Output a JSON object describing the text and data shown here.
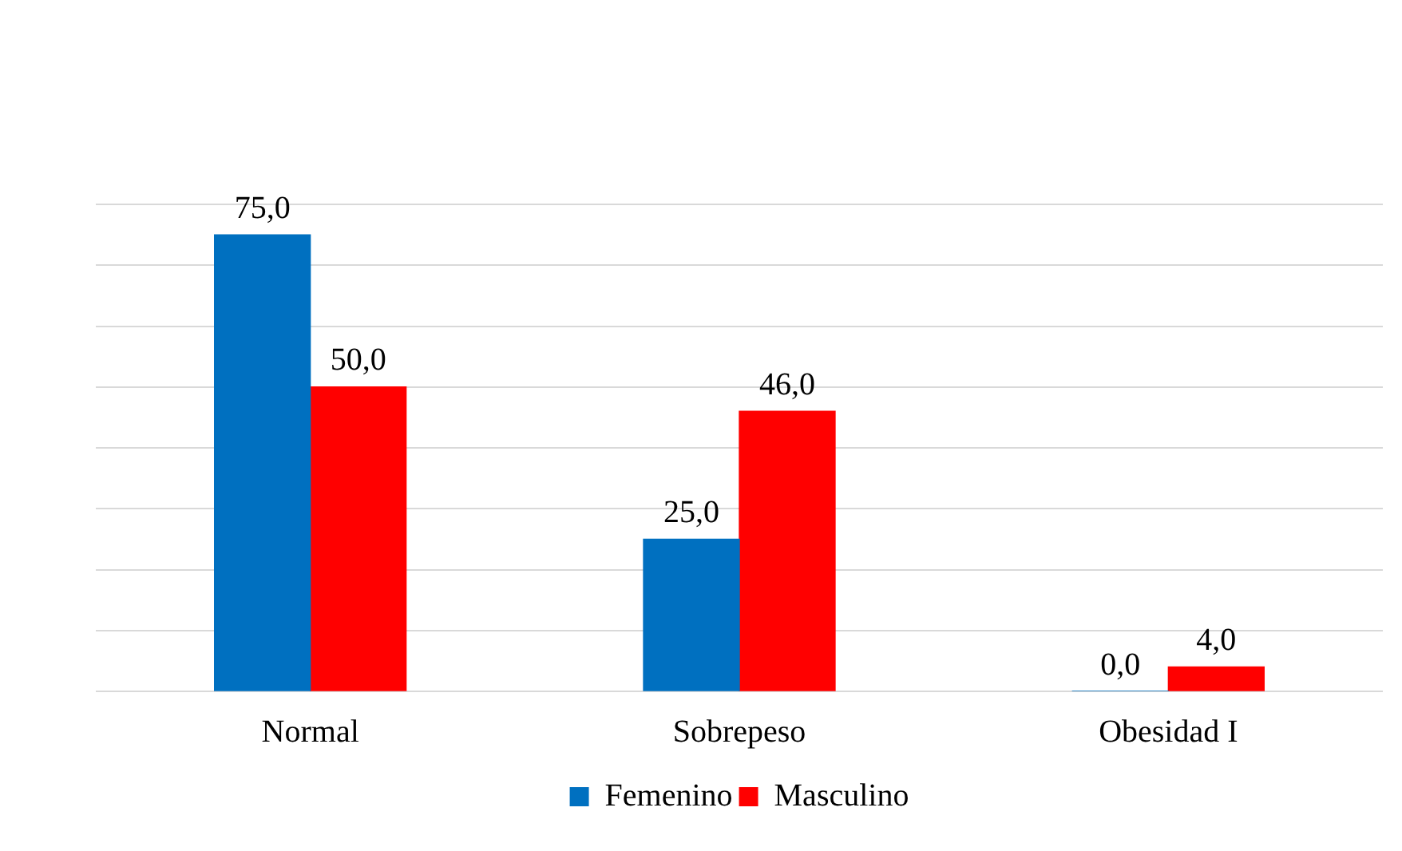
{
  "chart_data": {
    "type": "bar",
    "categories": [
      "Normal",
      "Sobrepeso",
      "Obesidad I"
    ],
    "series": [
      {
        "name": "Femenino",
        "color": "#0070c0",
        "values": [
          75,
          25,
          0
        ],
        "value_labels": [
          "75,0",
          "25,0",
          "0,0"
        ]
      },
      {
        "name": "Masculino",
        "color": "#ff0000",
        "values": [
          50,
          46,
          4
        ],
        "value_labels": [
          "50,0",
          "46,0",
          "4,0"
        ]
      }
    ],
    "ylim": [
      0,
      80
    ],
    "yticks": [
      {
        "value": 0,
        "label": null
      },
      {
        "value": 10,
        "label": null
      },
      {
        "value": 20,
        "label": null
      },
      {
        "value": 30,
        "label": null
      },
      {
        "value": 40,
        "label": null
      },
      {
        "value": 50,
        "label": null
      },
      {
        "value": 60,
        "label": null
      },
      {
        "value": 70,
        "label": null
      },
      {
        "value": 80,
        "label": null
      }
    ],
    "grid": "y",
    "legend": "bottom",
    "tick_labels": "x"
  }
}
